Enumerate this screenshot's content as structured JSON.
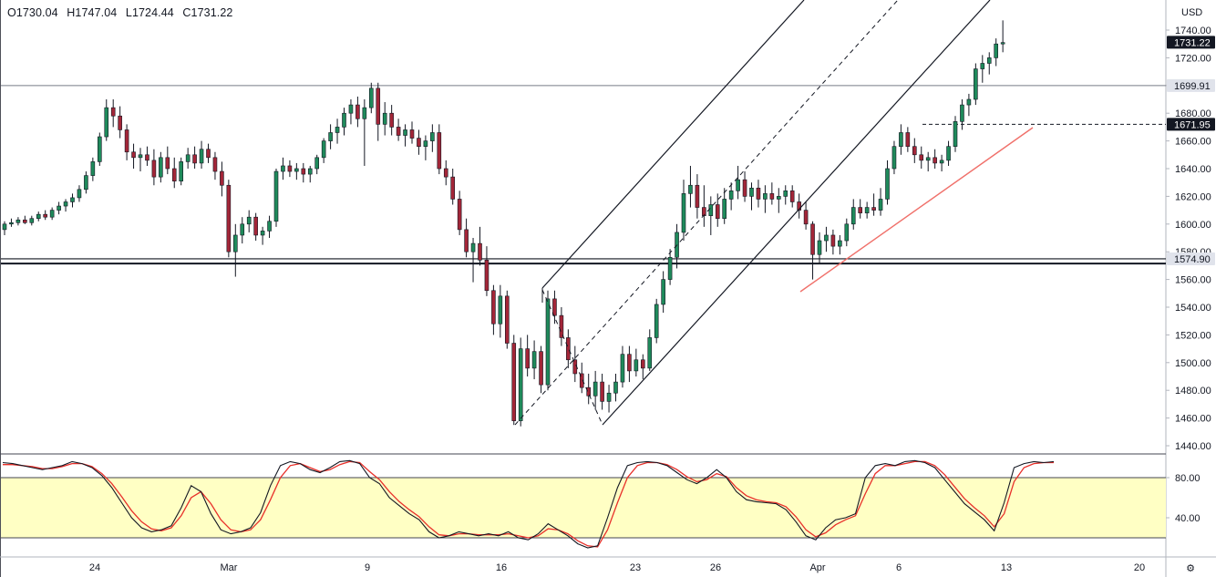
{
  "header": {
    "open": "O1730.04",
    "high": "H1747.04",
    "low": "L1724.44",
    "close": "C1731.22"
  },
  "currency": "USD",
  "colors": {
    "up": "#1f8a5b",
    "down": "#a32638",
    "fast_line": "#131722",
    "slow_line": "#e8302a",
    "band_fill": "#ffffc4",
    "trendline": "#f0706a",
    "channel": "#131722"
  },
  "chart_data": [
    {
      "type": "candlestick",
      "symbol_unit": "USD",
      "ylim": [
        1430,
        1760
      ],
      "y_ticks": [
        1440,
        1460,
        1480,
        1500,
        1520,
        1540,
        1560,
        1580,
        1600,
        1620,
        1640,
        1660,
        1680,
        1700,
        1720,
        1740
      ],
      "x_tick_labels": [
        "24",
        "Mar",
        "9",
        "16",
        "23",
        "26",
        "Apr",
        "6",
        "13",
        "20"
      ],
      "price_tags": [
        "1731.22",
        "1699.91",
        "1671.95",
        "1574.90"
      ],
      "horizontal_levels": [
        1699.91,
        1671.95,
        1574.9,
        1571.5
      ],
      "trend_channel": {
        "lower_start": [
          94,
          1455
        ],
        "lower_end": [
          156,
          1770
        ],
        "upper_start": [
          66,
          1555
        ],
        "upper_end": [
          127,
          1770
        ],
        "mid_dashed": true
      },
      "support_trendline": {
        "start": [
          124,
          1555
        ],
        "end": [
          159,
          1670
        ]
      },
      "candles": [
        [
          1596,
          1602,
          1592,
          1600
        ],
        [
          1600,
          1604,
          1598,
          1601
        ],
        [
          1601,
          1605,
          1599,
          1603
        ],
        [
          1603,
          1606,
          1600,
          1601
        ],
        [
          1601,
          1606,
          1599,
          1604
        ],
        [
          1604,
          1609,
          1602,
          1607
        ],
        [
          1607,
          1610,
          1603,
          1605
        ],
        [
          1605,
          1612,
          1603,
          1610
        ],
        [
          1610,
          1616,
          1607,
          1613
        ],
        [
          1613,
          1618,
          1609,
          1616
        ],
        [
          1616,
          1622,
          1612,
          1619
        ],
        [
          1619,
          1628,
          1616,
          1625
        ],
        [
          1625,
          1638,
          1622,
          1635
        ],
        [
          1635,
          1648,
          1631,
          1645
        ],
        [
          1645,
          1666,
          1642,
          1663
        ],
        [
          1663,
          1690,
          1660,
          1684
        ],
        [
          1684,
          1690,
          1670,
          1678
        ],
        [
          1678,
          1685,
          1662,
          1668
        ],
        [
          1668,
          1672,
          1646,
          1652
        ],
        [
          1652,
          1658,
          1640,
          1648
        ],
        [
          1648,
          1655,
          1638,
          1650
        ],
        [
          1650,
          1656,
          1642,
          1646
        ],
        [
          1646,
          1654,
          1628,
          1634
        ],
        [
          1634,
          1652,
          1630,
          1648
        ],
        [
          1648,
          1656,
          1636,
          1640
        ],
        [
          1640,
          1648,
          1626,
          1631
        ],
        [
          1631,
          1648,
          1628,
          1645
        ],
        [
          1645,
          1655,
          1640,
          1650
        ],
        [
          1650,
          1656,
          1640,
          1644
        ],
        [
          1644,
          1660,
          1640,
          1654
        ],
        [
          1654,
          1658,
          1644,
          1648
        ],
        [
          1648,
          1652,
          1632,
          1638
        ],
        [
          1638,
          1645,
          1620,
          1628
        ],
        [
          1628,
          1632,
          1576,
          1580
        ],
        [
          1580,
          1600,
          1562,
          1592
        ],
        [
          1592,
          1605,
          1586,
          1600
        ],
        [
          1600,
          1610,
          1594,
          1605
        ],
        [
          1605,
          1608,
          1588,
          1592
        ],
        [
          1592,
          1598,
          1585,
          1595
        ],
        [
          1595,
          1606,
          1590,
          1602
        ],
        [
          1602,
          1640,
          1598,
          1638
        ],
        [
          1638,
          1648,
          1632,
          1642
        ],
        [
          1642,
          1646,
          1634,
          1638
        ],
        [
          1638,
          1644,
          1632,
          1640
        ],
        [
          1640,
          1644,
          1630,
          1636
        ],
        [
          1636,
          1642,
          1630,
          1640
        ],
        [
          1640,
          1650,
          1636,
          1648
        ],
        [
          1648,
          1662,
          1644,
          1660
        ],
        [
          1660,
          1672,
          1654,
          1666
        ],
        [
          1666,
          1676,
          1658,
          1670
        ],
        [
          1670,
          1684,
          1664,
          1680
        ],
        [
          1680,
          1690,
          1672,
          1686
        ],
        [
          1686,
          1692,
          1670,
          1676
        ],
        [
          1676,
          1690,
          1642,
          1684
        ],
        [
          1684,
          1702,
          1680,
          1698
        ],
        [
          1698,
          1702,
          1660,
          1672
        ],
        [
          1672,
          1688,
          1664,
          1680
        ],
        [
          1680,
          1686,
          1664,
          1670
        ],
        [
          1670,
          1676,
          1660,
          1664
        ],
        [
          1664,
          1672,
          1656,
          1668
        ],
        [
          1668,
          1674,
          1658,
          1662
        ],
        [
          1662,
          1668,
          1650,
          1656
        ],
        [
          1656,
          1664,
          1646,
          1660
        ],
        [
          1660,
          1672,
          1652,
          1666
        ],
        [
          1666,
          1672,
          1636,
          1640
        ],
        [
          1640,
          1646,
          1628,
          1634
        ],
        [
          1634,
          1640,
          1614,
          1618
        ],
        [
          1618,
          1624,
          1592,
          1596
        ],
        [
          1596,
          1604,
          1576,
          1580
        ],
        [
          1580,
          1590,
          1558,
          1586
        ],
        [
          1586,
          1598,
          1570,
          1574
        ],
        [
          1574,
          1584,
          1548,
          1552
        ],
        [
          1552,
          1556,
          1520,
          1528
        ],
        [
          1528,
          1556,
          1518,
          1548
        ],
        [
          1548,
          1552,
          1510,
          1514
        ],
        [
          1514,
          1520,
          1455,
          1458
        ],
        [
          1458,
          1518,
          1454,
          1510
        ],
        [
          1510,
          1520,
          1490,
          1496
        ],
        [
          1496,
          1516,
          1488,
          1508
        ],
        [
          1508,
          1512,
          1478,
          1484
        ],
        [
          1484,
          1552,
          1480,
          1546
        ],
        [
          1546,
          1552,
          1528,
          1534
        ],
        [
          1534,
          1540,
          1512,
          1518
        ],
        [
          1518,
          1524,
          1496,
          1502
        ],
        [
          1502,
          1512,
          1486,
          1492
        ],
        [
          1492,
          1500,
          1478,
          1482
        ],
        [
          1482,
          1492,
          1470,
          1476
        ],
        [
          1476,
          1494,
          1466,
          1486
        ],
        [
          1486,
          1492,
          1466,
          1472
        ],
        [
          1472,
          1484,
          1464,
          1478
        ],
        [
          1478,
          1492,
          1472,
          1486
        ],
        [
          1486,
          1512,
          1482,
          1506
        ],
        [
          1506,
          1512,
          1486,
          1494
        ],
        [
          1494,
          1510,
          1490,
          1502
        ],
        [
          1502,
          1506,
          1488,
          1496
        ],
        [
          1496,
          1524,
          1494,
          1518
        ],
        [
          1518,
          1546,
          1514,
          1542
        ],
        [
          1542,
          1566,
          1536,
          1560
        ],
        [
          1560,
          1582,
          1556,
          1576
        ],
        [
          1576,
          1600,
          1568,
          1594
        ],
        [
          1594,
          1632,
          1588,
          1622
        ],
        [
          1622,
          1642,
          1612,
          1628
        ],
        [
          1628,
          1636,
          1604,
          1612
        ],
        [
          1612,
          1628,
          1598,
          1606
        ],
        [
          1606,
          1620,
          1592,
          1614
        ],
        [
          1614,
          1622,
          1598,
          1604
        ],
        [
          1604,
          1626,
          1600,
          1618
        ],
        [
          1618,
          1630,
          1610,
          1624
        ],
        [
          1624,
          1642,
          1618,
          1632
        ],
        [
          1632,
          1638,
          1616,
          1620
        ],
        [
          1620,
          1630,
          1610,
          1626
        ],
        [
          1626,
          1632,
          1612,
          1618
        ],
        [
          1618,
          1628,
          1608,
          1622
        ],
        [
          1622,
          1630,
          1614,
          1618
        ],
        [
          1618,
          1626,
          1608,
          1620
        ],
        [
          1620,
          1628,
          1614,
          1624
        ],
        [
          1624,
          1628,
          1612,
          1616
        ],
        [
          1616,
          1622,
          1604,
          1610
        ],
        [
          1610,
          1616,
          1596,
          1600
        ],
        [
          1600,
          1602,
          1560,
          1578
        ],
        [
          1578,
          1594,
          1572,
          1588
        ],
        [
          1588,
          1598,
          1580,
          1592
        ],
        [
          1592,
          1596,
          1578,
          1584
        ],
        [
          1584,
          1592,
          1578,
          1588
        ],
        [
          1588,
          1604,
          1584,
          1600
        ],
        [
          1600,
          1618,
          1596,
          1612
        ],
        [
          1612,
          1618,
          1604,
          1608
        ],
        [
          1608,
          1616,
          1604,
          1612
        ],
        [
          1612,
          1622,
          1606,
          1610
        ],
        [
          1610,
          1626,
          1606,
          1618
        ],
        [
          1618,
          1646,
          1614,
          1640
        ],
        [
          1640,
          1660,
          1636,
          1656
        ],
        [
          1656,
          1672,
          1650,
          1666
        ],
        [
          1666,
          1670,
          1652,
          1656
        ],
        [
          1656,
          1662,
          1644,
          1650
        ],
        [
          1650,
          1656,
          1640,
          1646
        ],
        [
          1646,
          1652,
          1638,
          1648
        ],
        [
          1648,
          1654,
          1640,
          1644
        ],
        [
          1644,
          1650,
          1638,
          1646
        ],
        [
          1646,
          1660,
          1642,
          1656
        ],
        [
          1656,
          1678,
          1652,
          1674
        ],
        [
          1674,
          1690,
          1668,
          1686
        ],
        [
          1686,
          1694,
          1678,
          1690
        ],
        [
          1690,
          1716,
          1686,
          1712
        ],
        [
          1712,
          1722,
          1702,
          1716
        ],
        [
          1716,
          1724,
          1708,
          1720
        ],
        [
          1720,
          1734,
          1714,
          1730
        ],
        [
          1730,
          1747,
          1724,
          1731
        ]
      ]
    },
    {
      "type": "line",
      "indicator": "oscillator",
      "ylim": [
        0,
        100
      ],
      "y_ticks": [
        40,
        80
      ],
      "band": [
        20,
        80
      ],
      "series": [
        {
          "values": [
            95,
            94,
            92,
            90,
            88,
            90,
            92,
            96,
            94,
            90,
            82,
            70,
            55,
            40,
            30,
            26,
            28,
            32,
            50,
            72,
            66,
            44,
            28,
            24,
            26,
            30,
            45,
            72,
            92,
            96,
            94,
            88,
            85,
            90,
            96,
            97,
            94,
            80,
            74,
            60,
            52,
            44,
            38,
            26,
            20,
            22,
            26,
            24,
            22,
            24,
            22,
            26,
            20,
            18,
            24,
            34,
            28,
            22,
            14,
            10,
            12,
            40,
            70,
            92,
            95,
            96,
            95,
            92,
            85,
            78,
            74,
            80,
            88,
            80,
            66,
            58,
            56,
            55,
            54,
            48,
            36,
            22,
            18,
            30,
            38,
            40,
            44,
            80,
            92,
            94,
            92,
            96,
            97,
            95,
            90,
            78,
            66,
            54,
            46,
            38,
            27,
            55,
            90,
            94,
            96,
            95,
            96
          ]
        },
        {
          "values": [
            93,
            93,
            92,
            91,
            89,
            89,
            91,
            94,
            94,
            91,
            84,
            74,
            61,
            47,
            36,
            29,
            27,
            30,
            42,
            60,
            66,
            54,
            38,
            28,
            26,
            28,
            38,
            58,
            80,
            92,
            94,
            90,
            86,
            88,
            93,
            96,
            95,
            86,
            78,
            66,
            56,
            48,
            41,
            31,
            23,
            22,
            24,
            24,
            23,
            23,
            23,
            24,
            22,
            20,
            22,
            29,
            28,
            24,
            17,
            12,
            11,
            28,
            55,
            80,
            92,
            95,
            95,
            93,
            88,
            81,
            76,
            78,
            84,
            81,
            70,
            62,
            58,
            56,
            55,
            51,
            41,
            28,
            21,
            25,
            33,
            38,
            42,
            64,
            84,
            92,
            92,
            94,
            96,
            96,
            92,
            83,
            71,
            59,
            50,
            42,
            31,
            44,
            76,
            90,
            94,
            95,
            95
          ]
        }
      ]
    }
  ]
}
